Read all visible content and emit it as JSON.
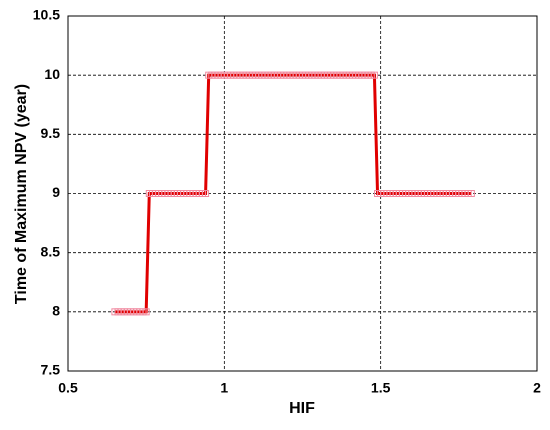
{
  "chart_data": {
    "type": "line",
    "xlabel": "HIF",
    "ylabel": "Time of Maximum NPV (year)",
    "x": [
      0.65,
      0.66,
      0.67,
      0.68,
      0.69,
      0.7,
      0.71,
      0.72,
      0.73,
      0.74,
      0.75,
      0.76,
      0.77,
      0.78,
      0.79,
      0.8,
      0.81,
      0.82,
      0.83,
      0.84,
      0.85,
      0.86,
      0.87,
      0.88,
      0.89,
      0.9,
      0.91,
      0.92,
      0.93,
      0.94,
      0.95,
      0.96,
      0.97,
      0.98,
      0.99,
      1,
      1.01,
      1.02,
      1.03,
      1.04,
      1.05,
      1.06,
      1.07,
      1.08,
      1.09,
      1.1,
      1.11,
      1.12,
      1.13,
      1.14,
      1.15,
      1.16,
      1.17,
      1.18,
      1.19,
      1.2,
      1.21,
      1.22,
      1.23,
      1.24,
      1.25,
      1.26,
      1.27,
      1.28,
      1.29,
      1.3,
      1.31,
      1.32,
      1.33,
      1.34,
      1.35,
      1.36,
      1.37,
      1.38,
      1.39,
      1.4,
      1.41,
      1.42,
      1.43,
      1.44,
      1.45,
      1.46,
      1.47,
      1.48,
      1.49,
      1.5,
      1.51,
      1.52,
      1.53,
      1.54,
      1.55,
      1.56,
      1.57,
      1.58,
      1.59,
      1.6,
      1.61,
      1.62,
      1.63,
      1.64,
      1.65,
      1.66,
      1.67,
      1.68,
      1.69,
      1.7,
      1.71,
      1.72,
      1.73,
      1.74,
      1.75,
      1.76,
      1.77,
      1.78,
      1.79
    ],
    "series": [
      {
        "color": "#e00000",
        "marker_color": "#f08aa0",
        "values": [
          8,
          8,
          8,
          8,
          8,
          8,
          8,
          8,
          8,
          8,
          8,
          9,
          9,
          9,
          9,
          9,
          9,
          9,
          9,
          9,
          9,
          9,
          9,
          9,
          9,
          9,
          9,
          9,
          9,
          9,
          10,
          10,
          10,
          10,
          10,
          10,
          10,
          10,
          10,
          10,
          10,
          10,
          10,
          10,
          10,
          10,
          10,
          10,
          10,
          10,
          10,
          10,
          10,
          10,
          10,
          10,
          10,
          10,
          10,
          10,
          10,
          10,
          10,
          10,
          10,
          10,
          10,
          10,
          10,
          10,
          10,
          10,
          10,
          10,
          10,
          10,
          10,
          10,
          10,
          10,
          10,
          10,
          10,
          10,
          9,
          9,
          9,
          9,
          9,
          9,
          9,
          9,
          9,
          9,
          9,
          9,
          9,
          9,
          9,
          9,
          9,
          9,
          9,
          9,
          9,
          9,
          9,
          9,
          9,
          9,
          9,
          9,
          9,
          9,
          9
        ]
      }
    ],
    "xlim": [
      0.5,
      2
    ],
    "xticks": [
      0.5,
      1,
      1.5,
      2
    ],
    "ylim": [
      7.5,
      10.5
    ],
    "yticks": [
      7.5,
      8,
      8.5,
      9,
      9.5,
      10,
      10.5
    ],
    "grid": true
  }
}
